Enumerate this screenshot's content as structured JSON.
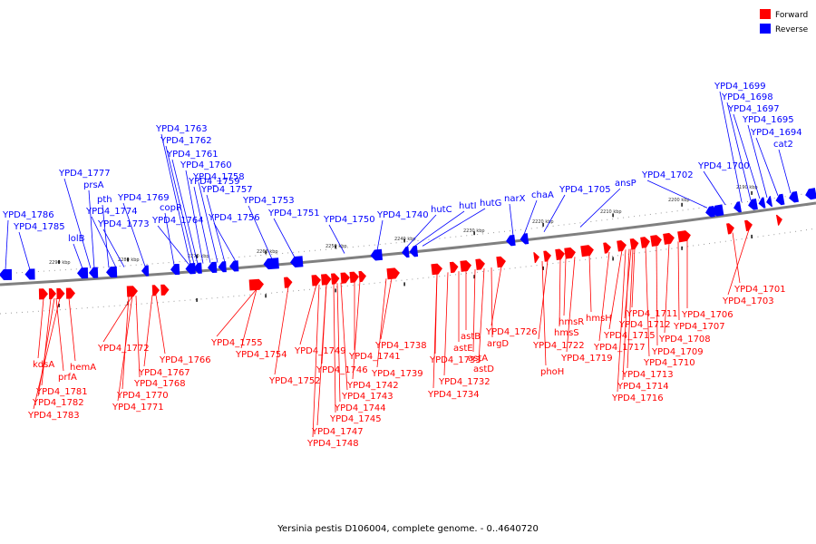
{
  "caption": "Yersinia pestis D106004, complete genome. - 0..4640720",
  "legend": {
    "forward": {
      "label": "Forward",
      "color": "#ff0000"
    },
    "reverse": {
      "label": "Reverse",
      "color": "#0000ff"
    }
  },
  "scale_ticks": [
    "2290 kbp",
    "2280 kbp",
    "2270 kbp",
    "2260 kbp",
    "2250 kbp",
    "2240 kbp",
    "2230 kbp",
    "2220 kbp",
    "2210 kbp",
    "2200 kbp",
    "2190 kbp"
  ],
  "reverse_labels": [
    "YPD4_1786",
    "YPD4_1785",
    "lolB",
    "YPD4_1777",
    "prsA",
    "pth",
    "YPD4_1774",
    "YPD4_1773",
    "YPD4_1769",
    "copR",
    "YPD4_1764",
    "YPD4_1763",
    "YPD4_1762",
    "YPD4_1761",
    "YPD4_1760",
    "YPD4_1759",
    "YPD4_1758",
    "YPD4_1757",
    "YPD4_1756",
    "YPD4_1753",
    "YPD4_1751",
    "YPD4_1750",
    "YPD4_1740",
    "hutC",
    "hutI",
    "hutG",
    "narX",
    "chaA",
    "YPD4_1705",
    "ansP",
    "YPD4_1702",
    "YPD4_1700",
    "YPD4_1699",
    "YPD4_1698",
    "YPD4_1697",
    "YPD4_1695",
    "YPD4_1694",
    "cat2"
  ],
  "forward_labels": [
    "kdsA",
    "prfA",
    "hemA",
    "YPD4_1781",
    "YPD4_1782",
    "YPD4_1783",
    "YPD4_1772",
    "YPD4_1766",
    "YPD4_1767",
    "YPD4_1768",
    "YPD4_1770",
    "YPD4_1771",
    "YPD4_1755",
    "YPD4_1754",
    "YPD4_1752",
    "YPD4_1749",
    "YPD4_1746",
    "YPD4_1741",
    "YPD4_1742",
    "YPD4_1743",
    "YPD4_1744",
    "YPD4_1745",
    "YPD4_1747",
    "YPD4_1748",
    "YPD4_1738",
    "YPD4_1739",
    "YPD4_1733",
    "YPD4_1734",
    "YPD4_1732",
    "astE",
    "astB",
    "astA",
    "astD",
    "argD",
    "YPD4_1726",
    "phoH",
    "YPD4_1722",
    "hmsS",
    "hmsR",
    "YPD4_1719",
    "hmsH",
    "YPD4_1717",
    "YPD4_1715",
    "YPD4_1712",
    "YPD4_1711",
    "YPD4_1713",
    "YPD4_1714",
    "YPD4_1716",
    "YPD4_1710",
    "YPD4_1709",
    "YPD4_1708",
    "YPD4_1707",
    "YPD4_1706",
    "YPD4_1701",
    "YPD4_1703"
  ]
}
